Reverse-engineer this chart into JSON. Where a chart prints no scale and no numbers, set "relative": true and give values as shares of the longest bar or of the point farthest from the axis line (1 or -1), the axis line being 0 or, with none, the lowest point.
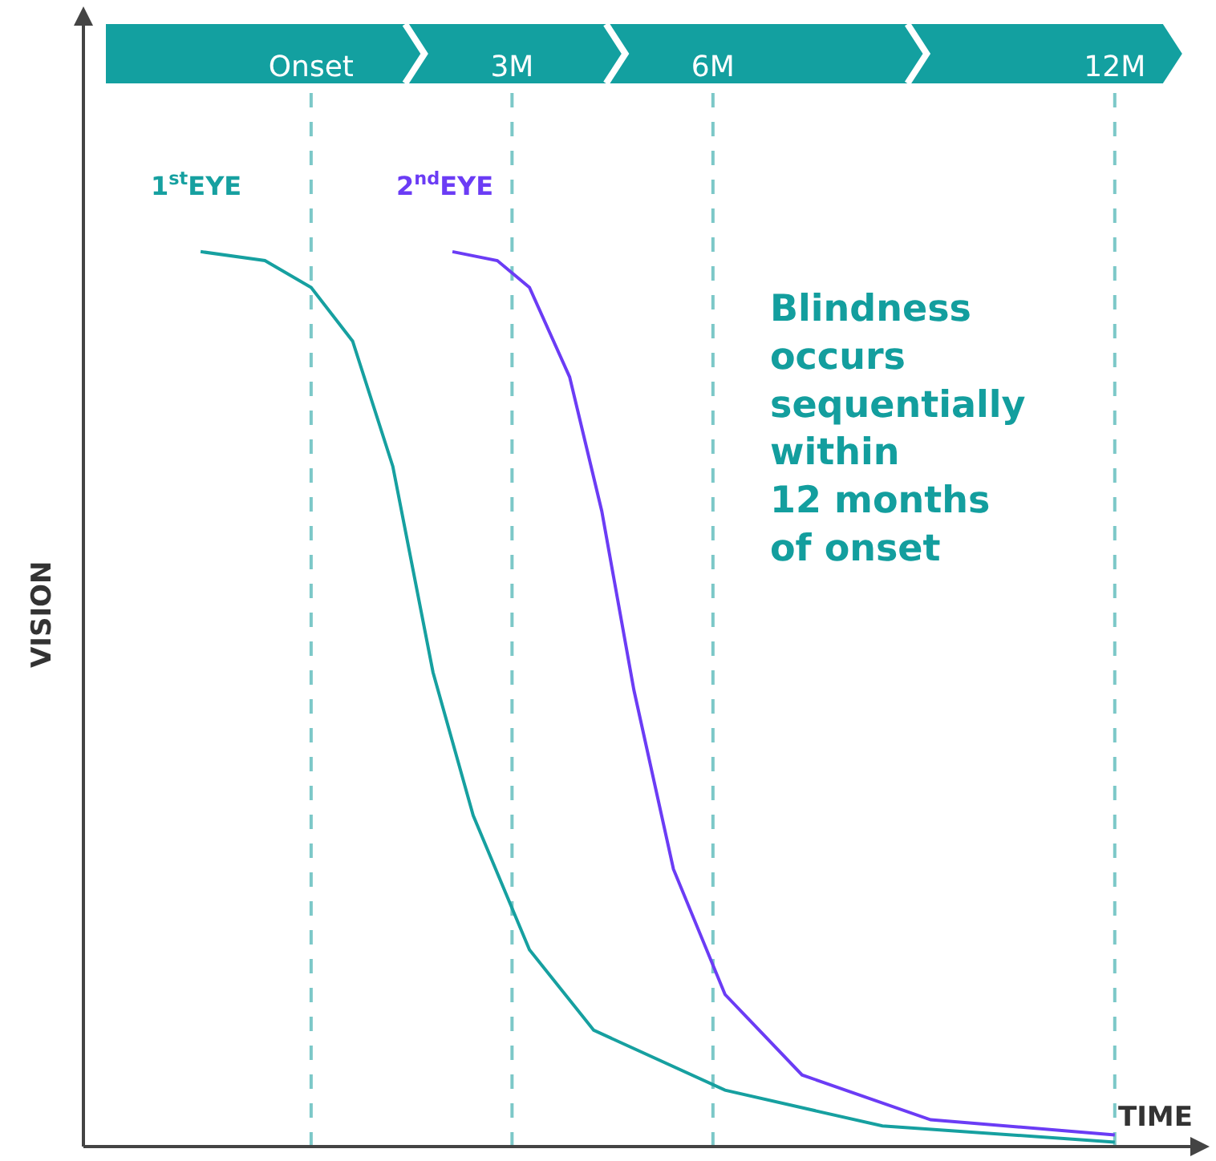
{
  "chart_data": {
    "type": "line",
    "relative": true,
    "xlabel": "TIME",
    "ylabel": "VISION",
    "xlim": [
      -3.4,
      13.2
    ],
    "legend": false,
    "xticks": [
      {
        "value": 0,
        "label": "Onset"
      },
      {
        "value": 3,
        "label": "3M"
      },
      {
        "value": 6,
        "label": "6M"
      },
      {
        "value": 12,
        "label": "12M"
      }
    ],
    "grid": false,
    "marker": "none",
    "line_style": "solid",
    "series": [
      {
        "name": "1$^{st}$EYE",
        "color": "#16a0a0",
        "x": [
          -1.65,
          -0.69,
          0,
          0.62,
          1.22,
          1.82,
          2.42,
          3.26,
          4.22,
          6.18,
          8.53,
          12
        ],
        "values": [
          1.0,
          0.99,
          0.96,
          0.9,
          0.76,
          0.53,
          0.37,
          0.22,
          0.13,
          0.063,
          0.023,
          0.005
        ]
      },
      {
        "name": "2$^{nd}$EYE",
        "color": "#6b3cf5",
        "x": [
          2.11,
          2.78,
          3.26,
          3.86,
          4.34,
          4.82,
          5.41,
          6.18,
          7.33,
          9.25,
          12
        ],
        "values": [
          1.0,
          0.99,
          0.96,
          0.86,
          0.71,
          0.51,
          0.31,
          0.17,
          0.08,
          0.03,
          0.013
        ]
      }
    ],
    "ref_lines": [
      {
        "axis": "x",
        "value": 0,
        "color": "#7cc8c8",
        "line_style": "dashed"
      },
      {
        "axis": "x",
        "value": 3,
        "color": "#7cc8c8",
        "line_style": "dashed"
      },
      {
        "axis": "x",
        "value": 6,
        "color": "#7cc8c8",
        "line_style": "dashed"
      },
      {
        "axis": "x",
        "value": 12,
        "color": "#7cc8c8",
        "line_style": "dashed"
      }
    ],
    "annotations": [
      "Blindness\noccurs\nsequentially\nwithin\n12 months\nof onset"
    ]
  }
}
